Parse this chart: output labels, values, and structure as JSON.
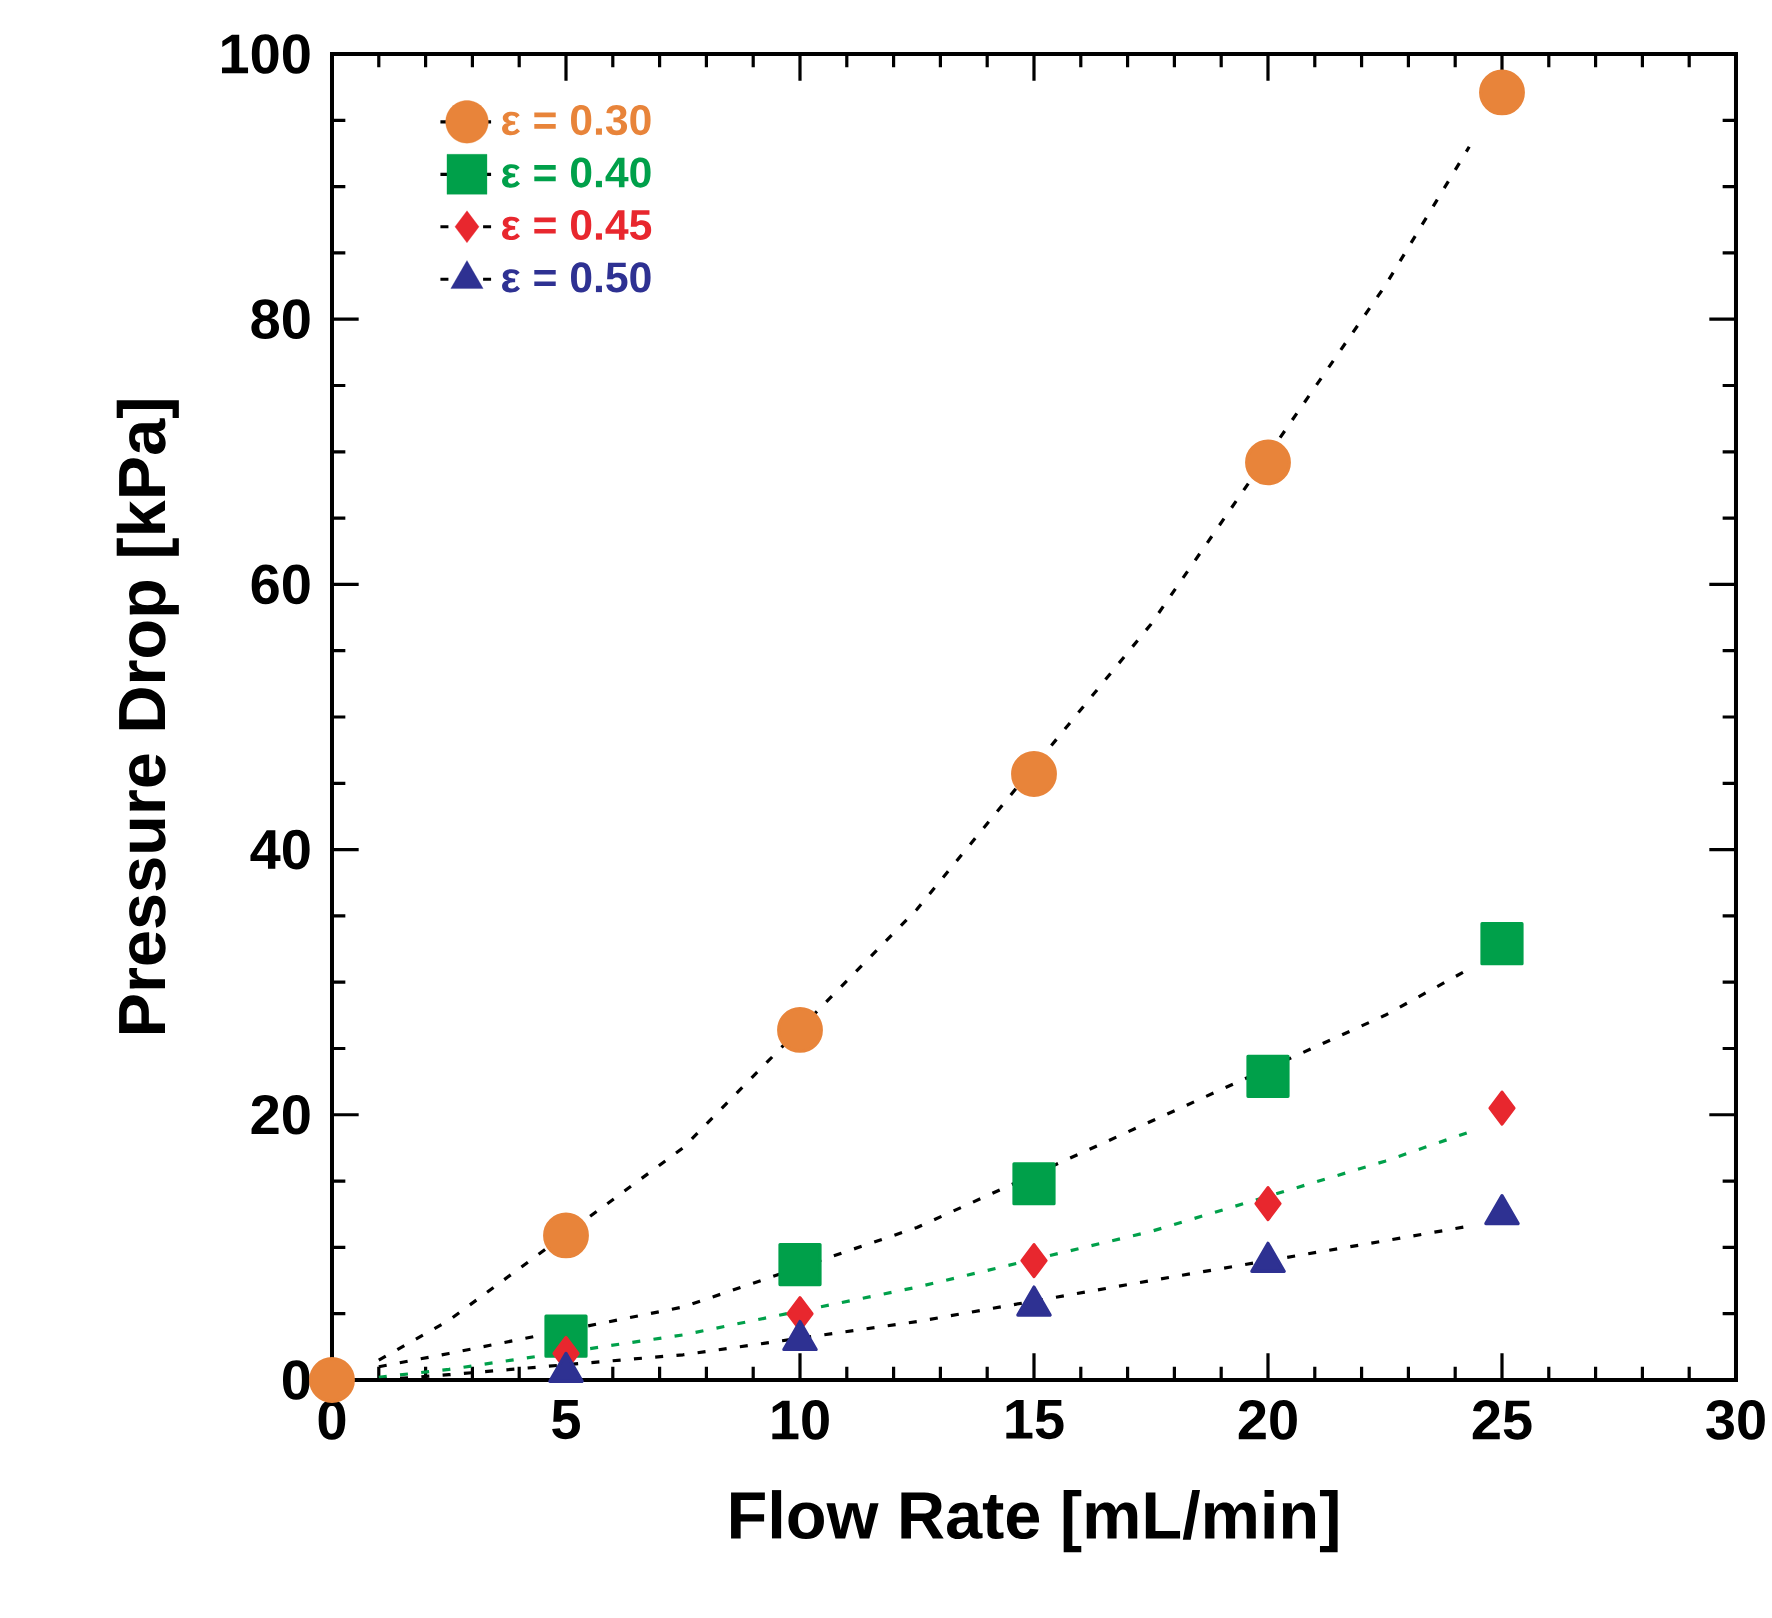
{
  "chart_data": {
    "type": "scatter",
    "xlabel": "Flow Rate [mL/min]",
    "ylabel": "Pressure Drop [kPa]",
    "xlim": [
      0,
      30
    ],
    "ylim": [
      0,
      100
    ],
    "xticks": [
      0,
      5,
      10,
      15,
      20,
      25,
      30
    ],
    "yticks": [
      0,
      20,
      40,
      60,
      80,
      100
    ],
    "grid": false,
    "legend": "top left",
    "series": [
      {
        "name": "ε = 0.30",
        "color": "#e8843a",
        "marker": "circle",
        "x": [
          0,
          5,
          10,
          15,
          20,
          25
        ],
        "values": [
          0,
          10.9,
          26.4,
          45.7,
          69.2,
          97.1
        ]
      },
      {
        "name": "ε = 0.40",
        "color": "#00a04a",
        "marker": "square",
        "x": [
          5,
          10,
          15,
          20,
          25
        ],
        "values": [
          3.3,
          8.7,
          14.8,
          22.9,
          32.9
        ]
      },
      {
        "name": "ε = 0.45",
        "color": "#e8272e",
        "marker": "diamond",
        "x": [
          5,
          10,
          15,
          20,
          25
        ],
        "values": [
          2.0,
          5.0,
          9.0,
          13.3,
          20.5
        ]
      },
      {
        "name": "ε = 0.50",
        "color": "#2e3192",
        "marker": "triangle",
        "x": [
          5,
          10,
          15,
          20,
          25
        ],
        "values": [
          0.6,
          3.0,
          5.6,
          8.9,
          12.5
        ]
      },
      {
        "type": "line",
        "color": "#000000",
        "line_style": "dashed",
        "marker": "none",
        "x": [
          1,
          2.5,
          7.5,
          12.5,
          17.5,
          22.5,
          24.3
        ],
        "values": [
          1.5,
          4.5,
          17.5,
          35.5,
          57,
          82.5,
          93
        ]
      },
      {
        "type": "line",
        "color": "#000000",
        "line_style": "dashed",
        "marker": "none",
        "x": [
          1,
          2.5,
          7.5,
          12.5,
          17.5,
          22.5,
          24.3
        ],
        "values": [
          1,
          2,
          5.5,
          11.5,
          19.5,
          27.5,
          31
        ]
      },
      {
        "type": "line",
        "color": "#00a04a",
        "line_style": "dashed",
        "marker": "none",
        "x": [
          1,
          2.5,
          7.5,
          12.5,
          17.5,
          22.5,
          24.3
        ],
        "values": [
          0.2,
          0.8,
          3.4,
          7,
          11.2,
          16.5,
          18.7
        ]
      },
      {
        "type": "line",
        "color": "#000000",
        "line_style": "dashed",
        "marker": "none",
        "x": [
          1,
          2.5,
          7.5,
          12.5,
          17.5,
          22.5,
          24.3
        ],
        "values": [
          0,
          0.4,
          1.9,
          4.4,
          7.5,
          10.5,
          11.6
        ]
      }
    ]
  }
}
